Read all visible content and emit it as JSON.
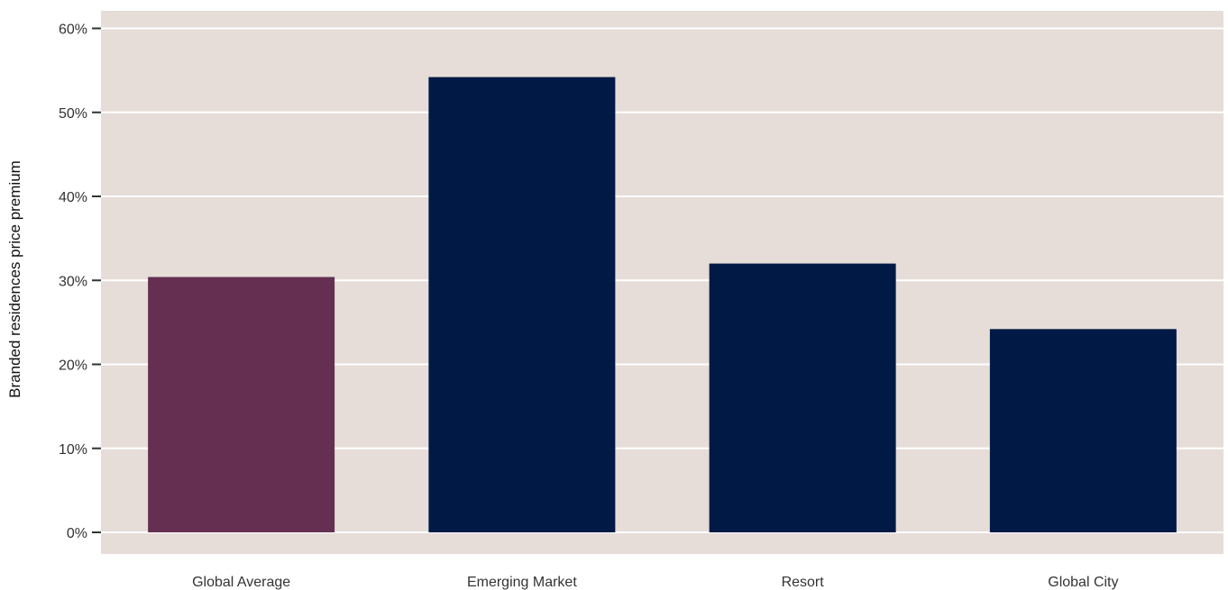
{
  "chart_data": {
    "type": "bar",
    "title": "",
    "xlabel": "",
    "ylabel": "Branded residences price premium",
    "categories": [
      "Global Average",
      "Emerging Market",
      "Resort",
      "Global City"
    ],
    "values": [
      30.4,
      54.2,
      32.0,
      24.2
    ],
    "bar_colors": [
      "#642f50",
      "#001a45",
      "#001a45",
      "#001a45"
    ],
    "ylim": [
      0,
      60
    ],
    "yticks": [
      0,
      10,
      20,
      30,
      40,
      50,
      60
    ],
    "ytick_labels": [
      "0%",
      "10%",
      "20%",
      "30%",
      "40%",
      "50%",
      "60%"
    ],
    "grid": true,
    "legend": "none",
    "panel_color": "#e6ddd8",
    "grid_color": "#ffffff"
  }
}
